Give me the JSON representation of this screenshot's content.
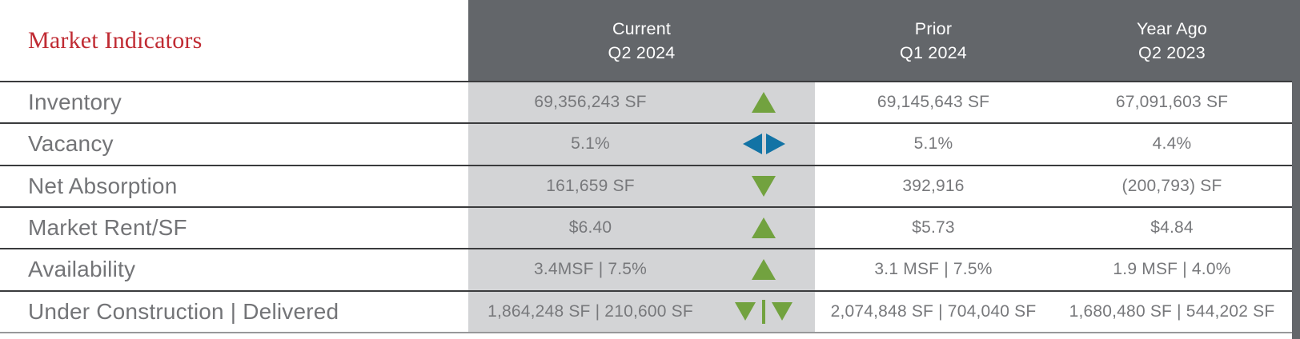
{
  "table": {
    "title": "Market Indicators",
    "columns": [
      {
        "line1": "Current",
        "line2": "Q2 2024"
      },
      {
        "line1": "Prior",
        "line2": "Q1 2024"
      },
      {
        "line1": "Year Ago",
        "line2": "Q2 2023"
      }
    ],
    "rows": [
      {
        "label": "Inventory",
        "current": "69,356,243 SF",
        "trend": "up",
        "prior": "69,145,643 SF",
        "year_ago": "67,091,603 SF"
      },
      {
        "label": "Vacancy",
        "current": "5.1%",
        "trend": "no-change",
        "prior": "5.1%",
        "year_ago": "4.4%"
      },
      {
        "label": "Net Absorption",
        "current": "161,659 SF",
        "trend": "down",
        "prior": "392,916",
        "year_ago": "(200,793) SF"
      },
      {
        "label": "Market Rent/SF",
        "current": "$6.40",
        "trend": "up",
        "prior": "$5.73",
        "year_ago": "$4.84"
      },
      {
        "label": "Availability",
        "current": "3.4MSF | 7.5%",
        "trend": "up",
        "prior": "3.1 MSF | 7.5%",
        "year_ago": "1.9 MSF | 4.0%"
      },
      {
        "label": "Under Construction | Delivered",
        "current": "1,864,248 SF | 210,600 SF",
        "trend": "down-down",
        "prior": "2,074,848 SF | 704,040 SF",
        "year_ago": "1,680,480 SF | 544,202 SF"
      }
    ],
    "colors": {
      "header_bg": "#63666a",
      "current_col_bg": "#d3d4d6",
      "trend_green": "#72a23f",
      "trend_blue": "#1273a5",
      "title_red": "#c02b33",
      "value_text": "#77787b"
    }
  }
}
